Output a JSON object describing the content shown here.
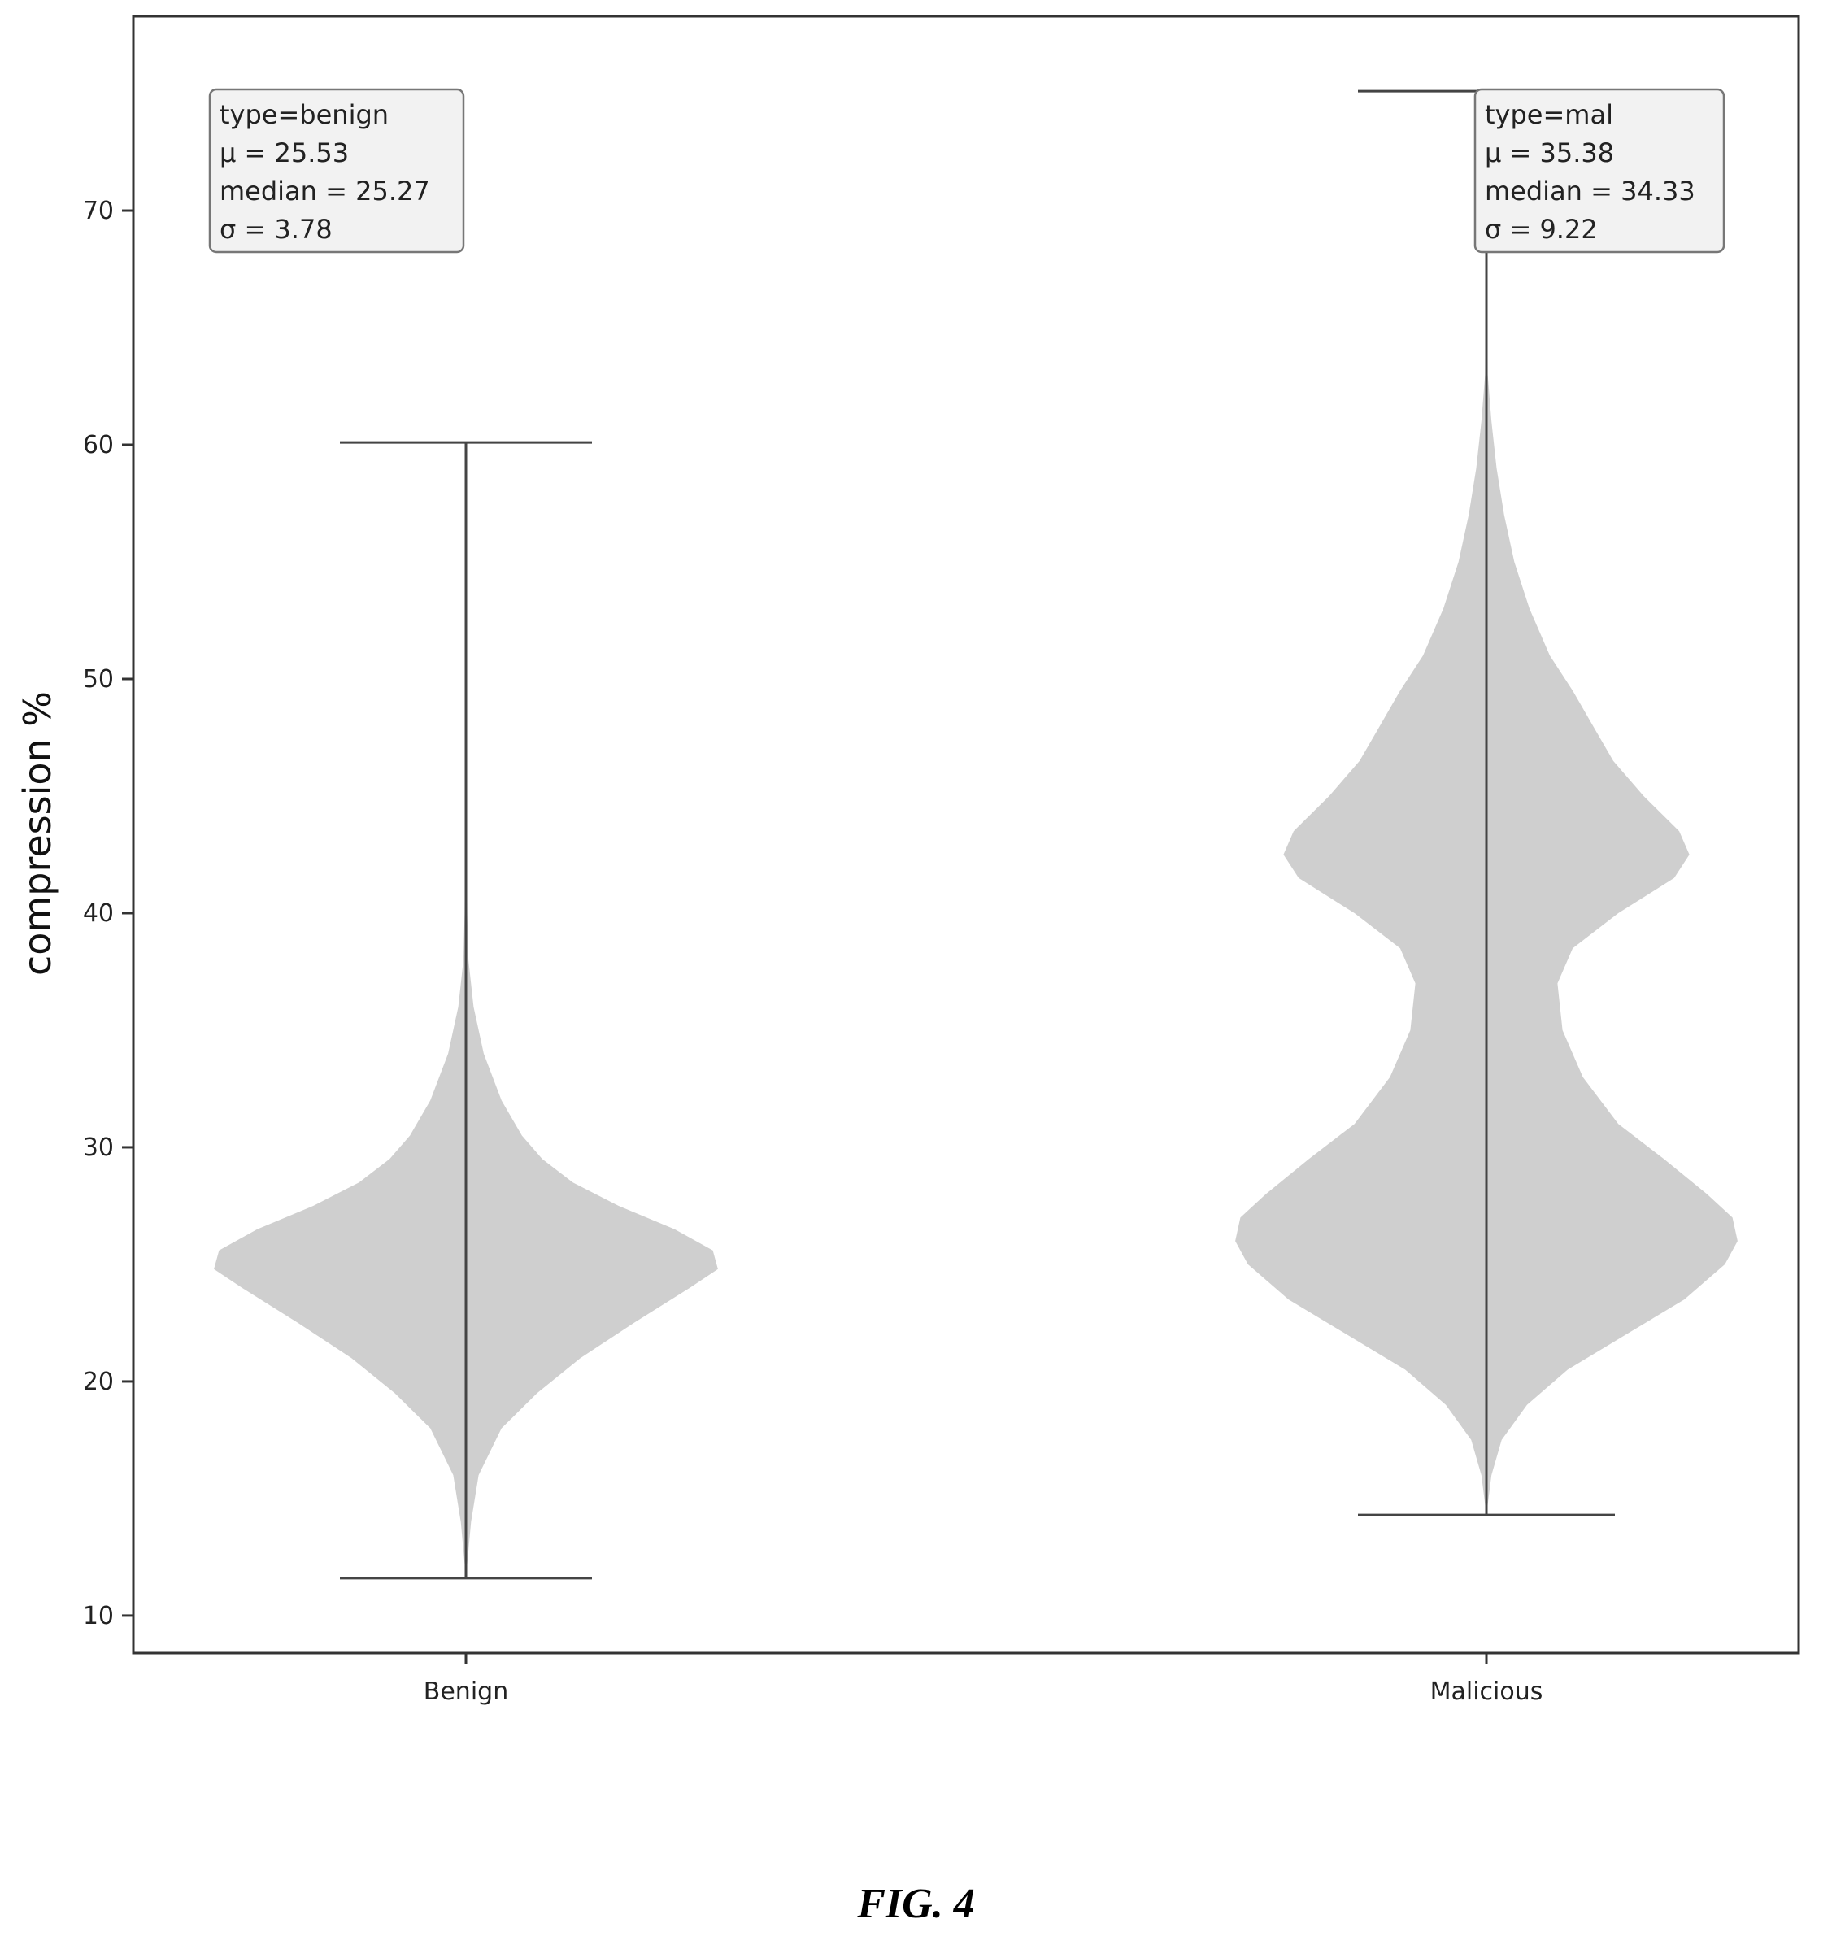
{
  "chart_data": {
    "type": "violin",
    "ylabel": "compression %",
    "ylim": [
      8.4,
      78.3
    ],
    "yticks": [
      10,
      20,
      30,
      40,
      50,
      60,
      70
    ],
    "categories": [
      "Benign",
      "Malicious"
    ],
    "grid": false,
    "series": [
      {
        "name": "Benign",
        "min": 11.6,
        "max": 60.1,
        "color": "#cfcfcf",
        "stats": [
          "type=benign",
          "μ = 25.53",
          "median = 25.27",
          "σ = 3.78"
        ],
        "density": [
          [
            11.6,
            0.0
          ],
          [
            14,
            0.02
          ],
          [
            16,
            0.05
          ],
          [
            18,
            0.14
          ],
          [
            19.5,
            0.28
          ],
          [
            21,
            0.45
          ],
          [
            22.5,
            0.66
          ],
          [
            24,
            0.88
          ],
          [
            24.8,
            0.99
          ],
          [
            25.6,
            0.97
          ],
          [
            26.5,
            0.82
          ],
          [
            27.5,
            0.6
          ],
          [
            28.5,
            0.42
          ],
          [
            29.5,
            0.3
          ],
          [
            30.5,
            0.22
          ],
          [
            32,
            0.14
          ],
          [
            34,
            0.07
          ],
          [
            36,
            0.03
          ],
          [
            38,
            0.01
          ],
          [
            40,
            0.005
          ],
          [
            45,
            0.002
          ],
          [
            60.1,
            0.0
          ]
        ]
      },
      {
        "name": "Malicious",
        "min": 14.3,
        "max": 75.1,
        "color": "#cfcfcf",
        "stats": [
          "type=mal",
          "μ = 35.38",
          "median = 34.33",
          "σ = 9.22"
        ],
        "density": [
          [
            14.3,
            0.0
          ],
          [
            16,
            0.02
          ],
          [
            17.5,
            0.06
          ],
          [
            19,
            0.16
          ],
          [
            20.5,
            0.32
          ],
          [
            22,
            0.55
          ],
          [
            23.5,
            0.78
          ],
          [
            25,
            0.94
          ],
          [
            26,
            0.99
          ],
          [
            27,
            0.97
          ],
          [
            28,
            0.87
          ],
          [
            29.5,
            0.7
          ],
          [
            31,
            0.52
          ],
          [
            33,
            0.38
          ],
          [
            35,
            0.3
          ],
          [
            37,
            0.28
          ],
          [
            38.5,
            0.34
          ],
          [
            40,
            0.52
          ],
          [
            41.5,
            0.74
          ],
          [
            42.5,
            0.8
          ],
          [
            43.5,
            0.76
          ],
          [
            45,
            0.62
          ],
          [
            46.5,
            0.5
          ],
          [
            48,
            0.42
          ],
          [
            49.5,
            0.34
          ],
          [
            51,
            0.25
          ],
          [
            53,
            0.17
          ],
          [
            55,
            0.11
          ],
          [
            57,
            0.07
          ],
          [
            59,
            0.04
          ],
          [
            61,
            0.02
          ],
          [
            63,
            0.005
          ],
          [
            75.1,
            0.0
          ]
        ]
      }
    ]
  },
  "caption": "FIG. 4"
}
